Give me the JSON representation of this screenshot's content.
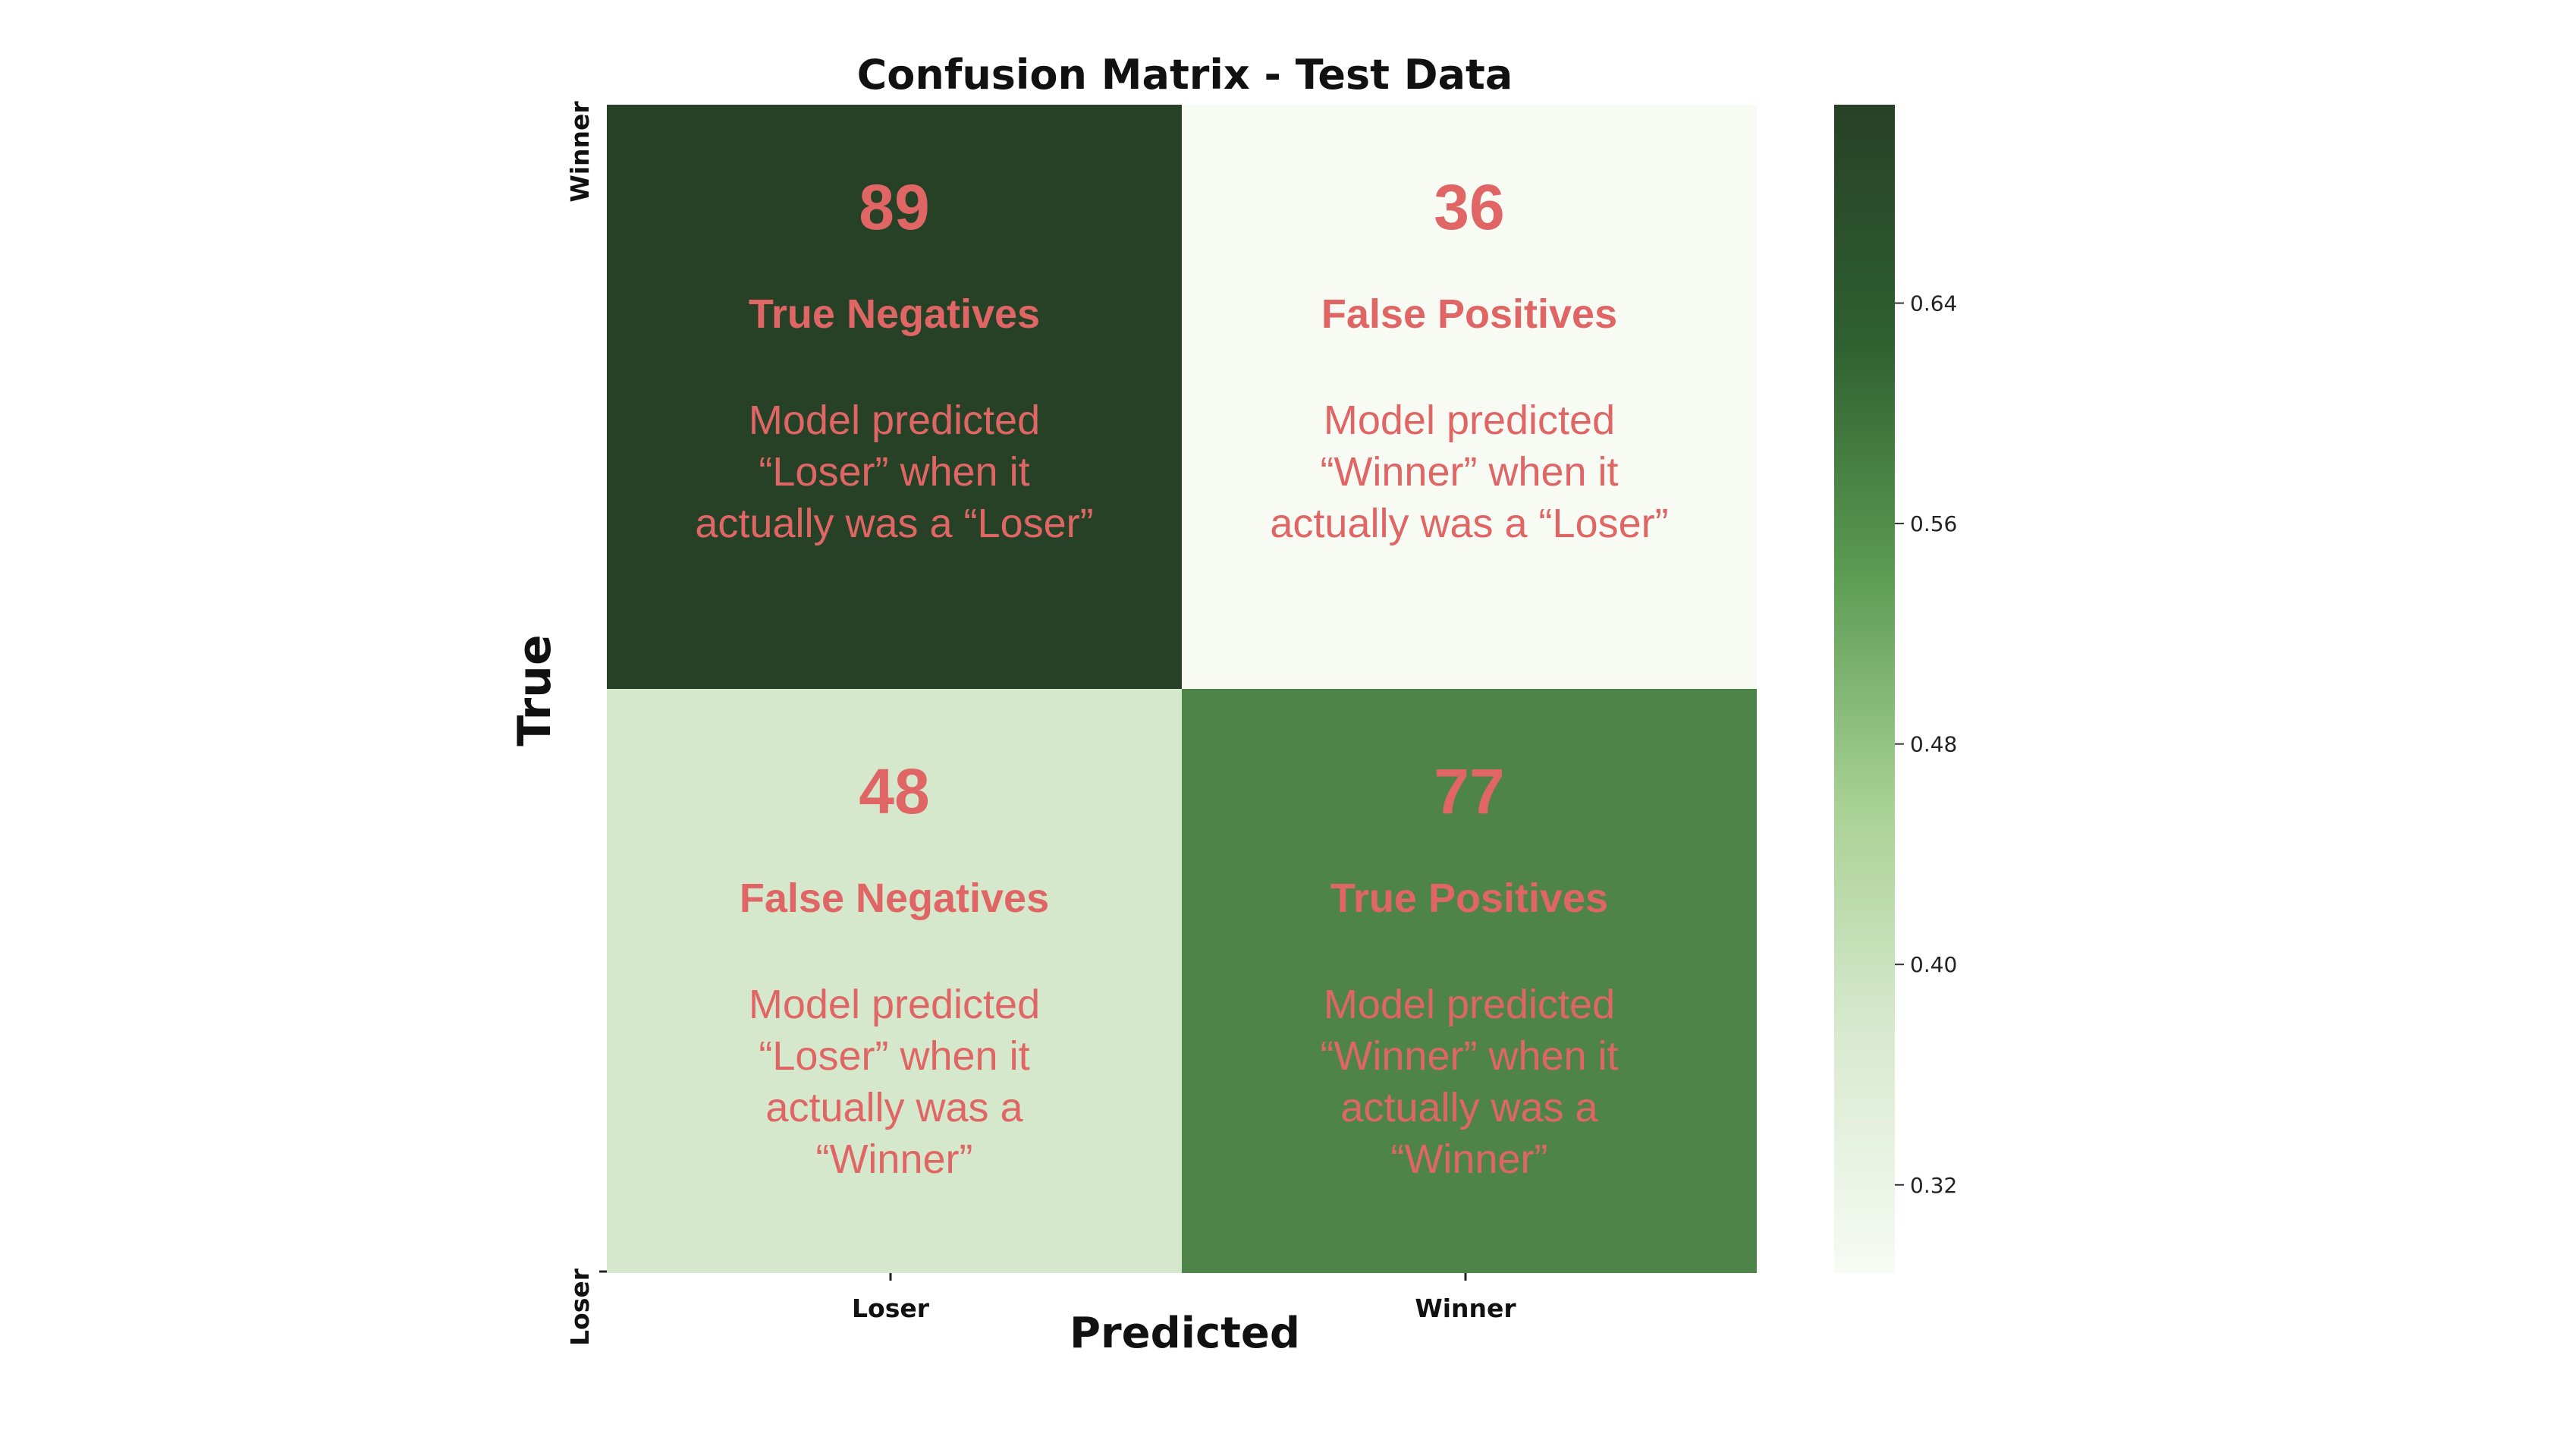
{
  "chart_data": {
    "type": "heatmap",
    "title": "Confusion Matrix - Test Data",
    "xlabel": "Predicted",
    "ylabel": "True",
    "x_categories": [
      "Loser",
      "Winner"
    ],
    "y_categories": [
      "Winner",
      "Loser"
    ],
    "cells": [
      {
        "row": 0,
        "col": 0,
        "value": 89,
        "fraction": 0.712,
        "label": "True Negatives",
        "description": [
          "Model predicted",
          "“Loser” when it",
          "actually was a “Loser”"
        ]
      },
      {
        "row": 0,
        "col": 1,
        "value": 36,
        "fraction": 0.288,
        "label": "False Positives",
        "description": [
          "Model predicted",
          "“Winner” when it",
          "actually was a “Loser”"
        ]
      },
      {
        "row": 1,
        "col": 0,
        "value": 48,
        "fraction": 0.384,
        "label": "False Negatives",
        "description": [
          "Model predicted",
          "“Loser” when it",
          "actually was a",
          "“Winner”"
        ]
      },
      {
        "row": 1,
        "col": 1,
        "value": 77,
        "fraction": 0.616,
        "label": "True Positives",
        "description": [
          "Model predicted",
          "“Winner” when it",
          "actually was a",
          "“Winner”"
        ]
      }
    ],
    "colorbar": {
      "range": [
        0.288,
        0.712
      ],
      "ticks": [
        0.32,
        0.4,
        0.48,
        0.56,
        0.64
      ],
      "tick_labels": [
        "0.32",
        "0.40",
        "0.48",
        "0.56",
        "0.64"
      ],
      "colormap": [
        "#f7fbf4",
        "#d9ead0",
        "#a8d194",
        "#5b9b52",
        "#2f5f30",
        "#274126"
      ]
    },
    "colors": {
      "annotation": "#e06666",
      "cell_colors": [
        "#274126",
        "#f7fbf4",
        "#d6e8cc",
        "#4e834a"
      ]
    }
  }
}
